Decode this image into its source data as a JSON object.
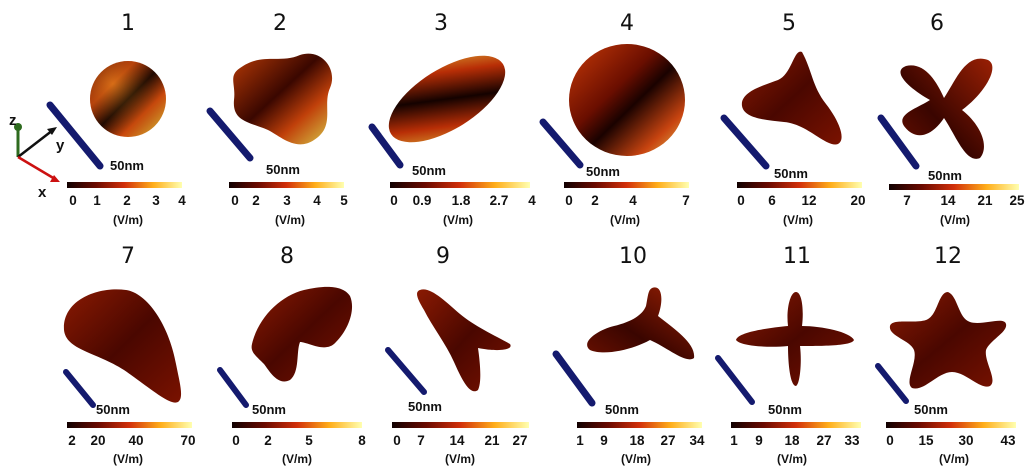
{
  "panels": [
    {
      "number": "1",
      "scale": "50nm",
      "ticks": [
        "0",
        "1",
        "2",
        "3",
        "4"
      ],
      "unit": "(V/m)"
    },
    {
      "number": "2",
      "scale": "50nm",
      "ticks": [
        "0",
        "2",
        "3",
        "4",
        "5"
      ],
      "unit": "(V/m)"
    },
    {
      "number": "3",
      "scale": "50nm",
      "ticks": [
        "0",
        "0.9",
        "1.8",
        "2.7",
        "4"
      ],
      "unit": "(V/m)"
    },
    {
      "number": "4",
      "scale": "50nm",
      "ticks": [
        "0",
        "2",
        "4",
        "7"
      ],
      "unit": "(V/m)"
    },
    {
      "number": "5",
      "scale": "50nm",
      "ticks": [
        "0",
        "6",
        "12",
        "20"
      ],
      "unit": "(V/m)"
    },
    {
      "number": "6",
      "scale": "50nm",
      "ticks": [
        "7",
        "14",
        "21",
        "25"
      ],
      "unit": "(V/m)"
    },
    {
      "number": "7",
      "scale": "50nm",
      "ticks": [
        "2",
        "20",
        "40",
        "70"
      ],
      "unit": "(V/m)"
    },
    {
      "number": "8",
      "scale": "50nm",
      "ticks": [
        "0",
        "2",
        "5",
        "8"
      ],
      "unit": "(V/m)"
    },
    {
      "number": "9",
      "scale": "50nm",
      "ticks": [
        "0",
        "7",
        "14",
        "21",
        "27"
      ],
      "unit": "(V/m)"
    },
    {
      "number": "10",
      "scale": "50nm",
      "ticks": [
        "1",
        "9",
        "18",
        "27",
        "34"
      ],
      "unit": "(V/m)"
    },
    {
      "number": "11",
      "scale": "50nm",
      "ticks": [
        "1",
        "9",
        "18",
        "27",
        "33"
      ],
      "unit": "(V/m)"
    },
    {
      "number": "12",
      "scale": "50nm",
      "ticks": [
        "0",
        "15",
        "30",
        "43"
      ],
      "unit": "(V/m)"
    }
  ],
  "axes": {
    "z": "z",
    "y": "y",
    "x": "x",
    "z_color": "#2e6b1f",
    "y_color": "#111111",
    "x_color": "#cc1111"
  },
  "colors": {
    "bar_color": "#141a6e",
    "map_low": "#140000",
    "map_mid": "#c8280a",
    "map_high": "#ffff80"
  }
}
